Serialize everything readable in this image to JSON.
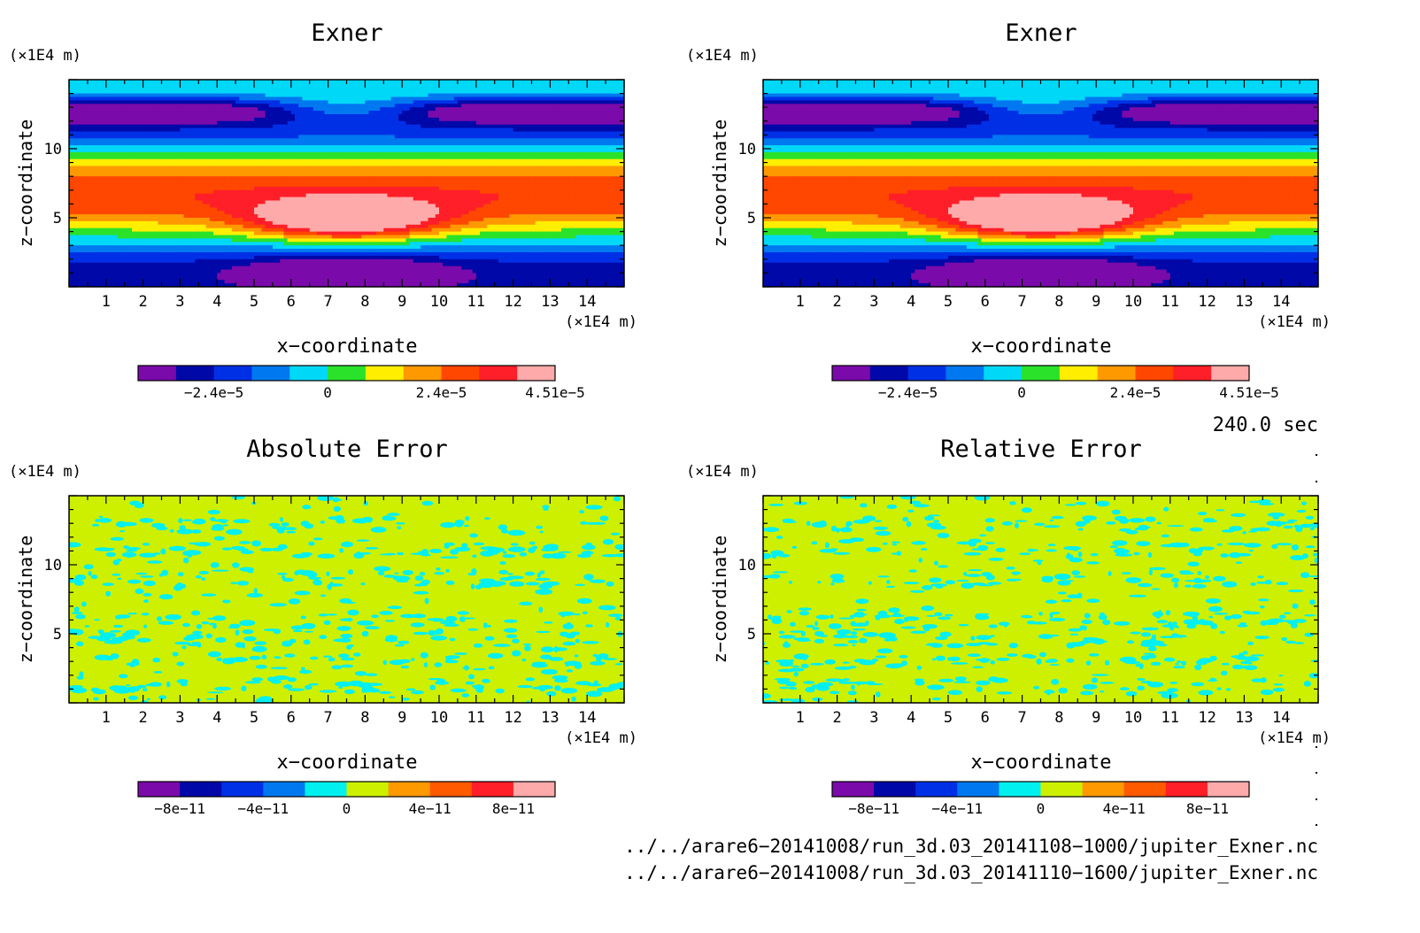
{
  "chart_data": [
    {
      "type": "heatmap",
      "title": "Exner",
      "xlabel": "x−coordinate",
      "ylabel": "z−coordinate",
      "x_unit": "(×1E4 m)",
      "y_unit": "(×1E4 m)",
      "xlim": [
        0,
        15
      ],
      "ylim": [
        0,
        15
      ],
      "x_ticks": [
        "1",
        "2",
        "3",
        "4",
        "5",
        "6",
        "7",
        "8",
        "9",
        "10",
        "11",
        "12",
        "13",
        "14"
      ],
      "y_ticks": [
        "5",
        "10"
      ],
      "colorbar": {
        "colors": [
          "#7b0aab",
          "#0008a8",
          "#0030e6",
          "#0078f0",
          "#00d8f8",
          "#2ae22a",
          "#ffee00",
          "#ff9900",
          "#ff4700",
          "#ff1f28",
          "#ffaaaa"
        ],
        "tick_labels": [
          "−2.4e−5",
          "0",
          "2.4e−5",
          "4.51e−5"
        ]
      },
      "field": "anomaly"
    },
    {
      "type": "heatmap",
      "title": "Exner",
      "xlabel": "x−coordinate",
      "ylabel": "z−coordinate",
      "x_unit": "(×1E4 m)",
      "y_unit": "(×1E4 m)",
      "xlim": [
        0,
        15
      ],
      "ylim": [
        0,
        15
      ],
      "x_ticks": [
        "1",
        "2",
        "3",
        "4",
        "5",
        "6",
        "7",
        "8",
        "9",
        "10",
        "11",
        "12",
        "13",
        "14"
      ],
      "y_ticks": [
        "5",
        "10"
      ],
      "colorbar": {
        "colors": [
          "#7b0aab",
          "#0008a8",
          "#0030e6",
          "#0078f0",
          "#00d8f8",
          "#2ae22a",
          "#ffee00",
          "#ff9900",
          "#ff4700",
          "#ff1f28",
          "#ffaaaa"
        ],
        "tick_labels": [
          "−2.4e−5",
          "0",
          "2.4e−5",
          "4.51e−5"
        ]
      },
      "field": "anomaly"
    },
    {
      "type": "heatmap",
      "title": "Absolute Error",
      "xlabel": "x−coordinate",
      "ylabel": "z−coordinate",
      "x_unit": "(×1E4 m)",
      "y_unit": "(×1E4 m)",
      "xlim": [
        0,
        15
      ],
      "ylim": [
        0,
        15
      ],
      "x_ticks": [
        "1",
        "2",
        "3",
        "4",
        "5",
        "6",
        "7",
        "8",
        "9",
        "10",
        "11",
        "12",
        "13",
        "14"
      ],
      "y_ticks": [
        "5",
        "10"
      ],
      "colorbar": {
        "colors": [
          "#7b0aab",
          "#0008a8",
          "#0030e6",
          "#0078f0",
          "#00f0f0",
          "#ccf000",
          "#ff9900",
          "#ff5a00",
          "#ff1f28",
          "#ffaaaa"
        ],
        "tick_labels": [
          "−8e−11",
          "−4e−11",
          "0",
          "4e−11",
          "8e−11"
        ]
      },
      "field": "noise",
      "background_color": "#ccf000",
      "noise_color": "#00f0f0"
    },
    {
      "type": "heatmap",
      "title": "Relative Error",
      "xlabel": "x−coordinate",
      "ylabel": "z−coordinate",
      "x_unit": "(×1E4 m)",
      "y_unit": "(×1E4 m)",
      "xlim": [
        0,
        15
      ],
      "ylim": [
        0,
        15
      ],
      "x_ticks": [
        "1",
        "2",
        "3",
        "4",
        "5",
        "6",
        "7",
        "8",
        "9",
        "10",
        "11",
        "12",
        "13",
        "14"
      ],
      "y_ticks": [
        "5",
        "10"
      ],
      "colorbar": {
        "colors": [
          "#7b0aab",
          "#0008a8",
          "#0030e6",
          "#0078f0",
          "#00f0f0",
          "#ccf000",
          "#ff9900",
          "#ff5a00",
          "#ff1f28",
          "#ffaaaa"
        ],
        "tick_labels": [
          "−8e−11",
          "−4e−11",
          "0",
          "4e−11",
          "8e−11"
        ]
      },
      "field": "noise",
      "background_color": "#ccf000",
      "noise_color": "#00f0f0"
    }
  ],
  "time_label": "240.0 sec",
  "file_paths": [
    "../../arare6−20141008/run_3d.03_20141108−1000/jupiter_Exner.nc",
    "../../arare6−20141008/run_3d.03_20141110−1600/jupiter_Exner.nc"
  ]
}
